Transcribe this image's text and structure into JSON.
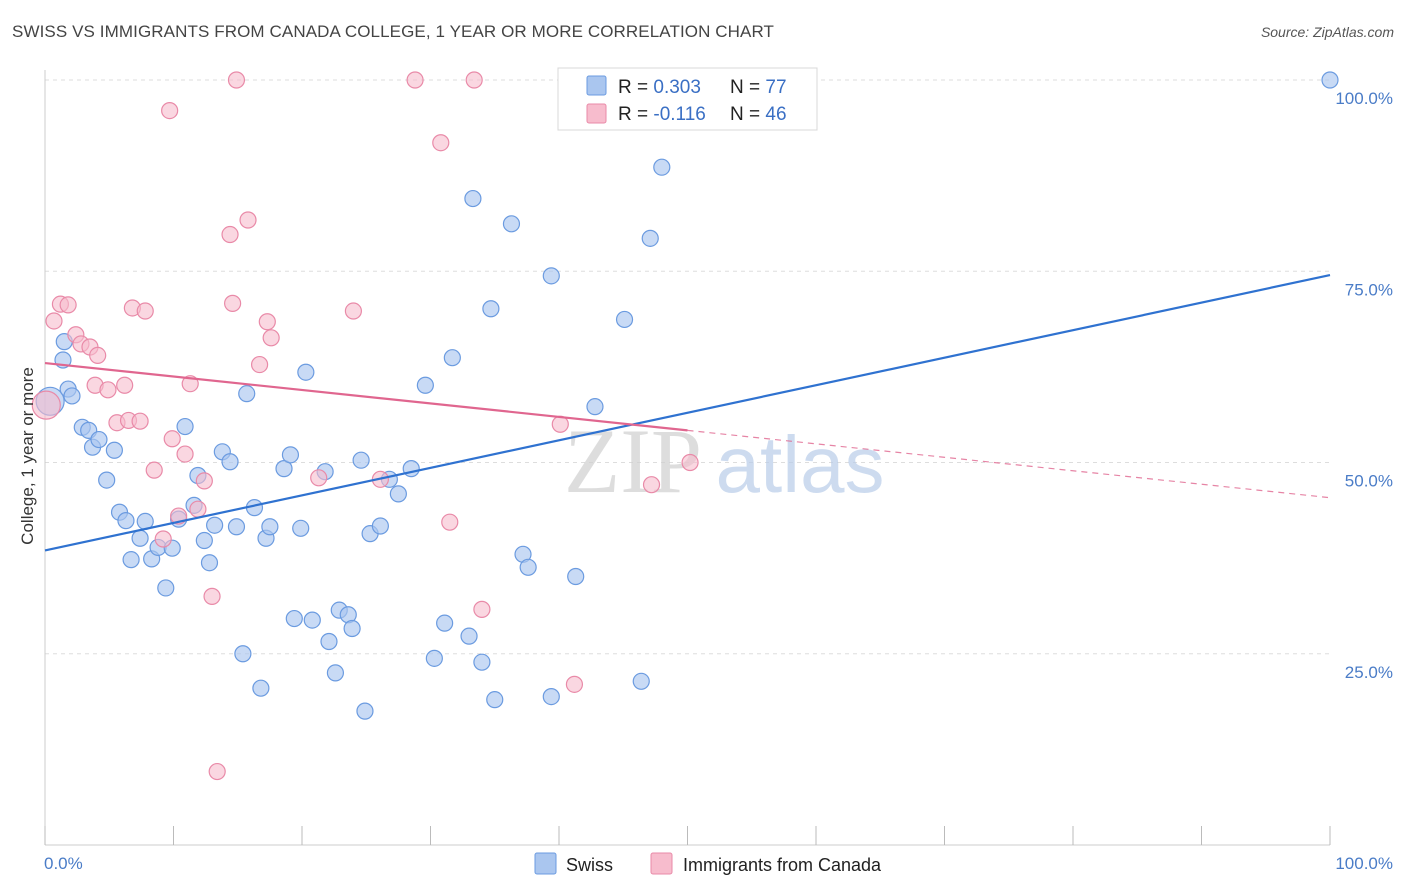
{
  "title": "SWISS VS IMMIGRANTS FROM CANADA COLLEGE, 1 YEAR OR MORE CORRELATION CHART",
  "source": "Source: ZipAtlas.com",
  "watermark": {
    "zip": "ZIP",
    "atlas": "atlas"
  },
  "colors": {
    "swiss_fill": "#aac6ef",
    "swiss_stroke": "#6b9be0",
    "swiss_line": "#2f72d0",
    "canada_fill": "#f7bccd",
    "canada_stroke": "#e98aa8",
    "canada_line": "#e0668f",
    "axis_label": "#4a7cc7",
    "grid": "#dddddd"
  },
  "legend": {
    "swiss": {
      "r_label": "R = ",
      "r_value": "0.303",
      "n_label": "N = ",
      "n_value": "77"
    },
    "canada": {
      "r_label": "R = ",
      "r_value": "-0.116",
      "n_label": "N = ",
      "n_value": "46"
    }
  },
  "chart_data": {
    "type": "scatter",
    "title": "SWISS VS IMMIGRANTS FROM CANADA COLLEGE, 1 YEAR OR MORE CORRELATION CHART",
    "xlabel": "",
    "ylabel": "College, 1 year or more",
    "xlim": [
      0,
      100
    ],
    "ylim": [
      0,
      100
    ],
    "x_tick_labels": [
      "0.0%",
      "100.0%"
    ],
    "y_ticks": [
      25,
      50,
      75,
      100
    ],
    "y_tick_labels": [
      "25.0%",
      "50.0%",
      "75.0%",
      "100.0%"
    ],
    "grid": true,
    "legend_position": "top-center",
    "series": [
      {
        "name": "Swiss",
        "points": [
          [
            0.4,
            58.0
          ],
          [
            1.5,
            65.8
          ],
          [
            1.4,
            63.4
          ],
          [
            1.8,
            59.6
          ],
          [
            2.1,
            58.7
          ],
          [
            2.9,
            54.6
          ],
          [
            3.4,
            54.2
          ],
          [
            3.7,
            52.0
          ],
          [
            4.2,
            53.0
          ],
          [
            4.8,
            47.7
          ],
          [
            5.4,
            51.6
          ],
          [
            5.8,
            43.5
          ],
          [
            6.3,
            42.4
          ],
          [
            6.7,
            37.3
          ],
          [
            7.4,
            40.1
          ],
          [
            7.8,
            42.3
          ],
          [
            8.3,
            37.4
          ],
          [
            8.8,
            38.9
          ],
          [
            9.4,
            33.6
          ],
          [
            9.9,
            38.8
          ],
          [
            10.4,
            42.6
          ],
          [
            10.9,
            54.7
          ],
          [
            11.6,
            44.4
          ],
          [
            11.9,
            48.3
          ],
          [
            12.4,
            39.8
          ],
          [
            12.8,
            36.9
          ],
          [
            13.2,
            41.8
          ],
          [
            13.8,
            51.4
          ],
          [
            14.4,
            50.1
          ],
          [
            14.9,
            41.6
          ],
          [
            15.4,
            25.0
          ],
          [
            15.7,
            59.0
          ],
          [
            16.3,
            44.1
          ],
          [
            16.8,
            20.5
          ],
          [
            17.2,
            40.1
          ],
          [
            17.5,
            41.6
          ],
          [
            18.6,
            49.2
          ],
          [
            19.1,
            51.0
          ],
          [
            19.4,
            29.6
          ],
          [
            19.9,
            41.4
          ],
          [
            20.3,
            61.8
          ],
          [
            20.8,
            29.4
          ],
          [
            21.8,
            48.8
          ],
          [
            22.1,
            26.6
          ],
          [
            22.6,
            22.5
          ],
          [
            22.9,
            30.7
          ],
          [
            23.6,
            30.1
          ],
          [
            23.9,
            28.3
          ],
          [
            24.6,
            50.3
          ],
          [
            24.9,
            17.5
          ],
          [
            25.3,
            40.7
          ],
          [
            26.1,
            41.7
          ],
          [
            26.8,
            47.8
          ],
          [
            27.5,
            45.9
          ],
          [
            28.5,
            49.2
          ],
          [
            29.6,
            60.1
          ],
          [
            30.3,
            24.4
          ],
          [
            31.1,
            29.0
          ],
          [
            31.7,
            63.7
          ],
          [
            33.0,
            27.3
          ],
          [
            33.3,
            84.5
          ],
          [
            34.0,
            23.9
          ],
          [
            34.7,
            70.1
          ],
          [
            35.0,
            19.0
          ],
          [
            36.3,
            81.2
          ],
          [
            37.2,
            38.0
          ],
          [
            37.6,
            36.3
          ],
          [
            39.4,
            74.4
          ],
          [
            39.4,
            19.4
          ],
          [
            41.3,
            35.1
          ],
          [
            42.8,
            57.3
          ],
          [
            45.1,
            68.7
          ],
          [
            46.4,
            21.4
          ],
          [
            47.1,
            79.3
          ],
          [
            48.0,
            88.6
          ],
          [
            50.9,
            100.0
          ],
          [
            100.0,
            100.0
          ]
        ]
      },
      {
        "name": "Immigrants from Canada",
        "points": [
          [
            0.1,
            57.5
          ],
          [
            0.7,
            68.5
          ],
          [
            1.2,
            70.7
          ],
          [
            1.8,
            70.6
          ],
          [
            2.4,
            66.7
          ],
          [
            2.8,
            65.5
          ],
          [
            3.5,
            65.1
          ],
          [
            4.1,
            64.0
          ],
          [
            3.9,
            60.1
          ],
          [
            4.9,
            59.5
          ],
          [
            5.6,
            55.2
          ],
          [
            6.2,
            60.1
          ],
          [
            6.5,
            55.5
          ],
          [
            6.8,
            70.2
          ],
          [
            7.4,
            55.4
          ],
          [
            7.8,
            69.8
          ],
          [
            8.5,
            49.0
          ],
          [
            9.2,
            40.0
          ],
          [
            9.7,
            96.0
          ],
          [
            9.9,
            53.1
          ],
          [
            10.4,
            43.0
          ],
          [
            10.9,
            51.1
          ],
          [
            11.3,
            60.3
          ],
          [
            11.9,
            43.9
          ],
          [
            12.4,
            47.6
          ],
          [
            13.0,
            32.5
          ],
          [
            13.4,
            9.6
          ],
          [
            14.4,
            79.8
          ],
          [
            14.6,
            70.8
          ],
          [
            14.9,
            100.0
          ],
          [
            15.8,
            81.7
          ],
          [
            16.7,
            62.8
          ],
          [
            17.3,
            68.4
          ],
          [
            17.6,
            66.3
          ],
          [
            21.3,
            48.0
          ],
          [
            24.0,
            69.8
          ],
          [
            26.1,
            47.8
          ],
          [
            28.8,
            100.0
          ],
          [
            30.8,
            91.8
          ],
          [
            31.5,
            42.2
          ],
          [
            33.4,
            100.0
          ],
          [
            34.0,
            30.8
          ],
          [
            40.1,
            55.0
          ],
          [
            41.2,
            21.0
          ],
          [
            47.2,
            47.1
          ],
          [
            50.2,
            50.0
          ]
        ]
      }
    ],
    "trend_lines": [
      {
        "name": "Swiss",
        "x": [
          0,
          100
        ],
        "y": [
          38.5,
          74.5
        ],
        "style": "solid"
      },
      {
        "name": "Immigrants from Canada",
        "x": [
          0,
          50
        ],
        "y": [
          63.0,
          54.2
        ],
        "style": "solid",
        "extended_x": [
          50,
          100
        ],
        "extended_y": [
          54.2,
          45.4
        ],
        "extended_style": "dashed"
      }
    ]
  }
}
